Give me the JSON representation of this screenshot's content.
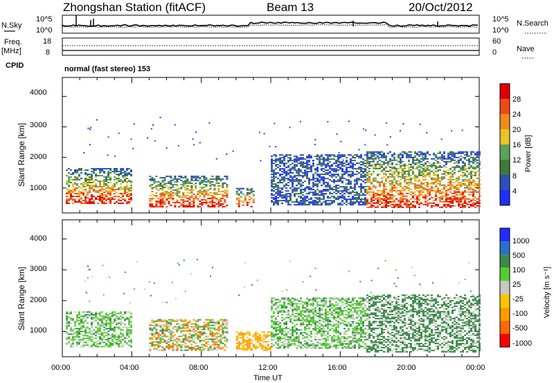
{
  "header": {
    "station": "Zhongshan Station (fitACF)",
    "beam": "Beam 13",
    "date": "20/Oct/2012"
  },
  "strip": {
    "nsky_label": "N.Sky",
    "nsearch_label": "N.Search",
    "freq_label_1": "Freq.",
    "freq_label_2": "[MHz]",
    "nave_label": "Nave",
    "cpid_label": "CPID",
    "cpid_text": "normal (fast stereo) 153",
    "noise_left_ticks": [
      "10^5",
      "10^0"
    ],
    "noise_right_ticks": [
      "10^5",
      "10^0"
    ],
    "freq_left_ticks": [
      "18",
      "8"
    ],
    "nave_right_ticks": [
      "60",
      "0"
    ]
  },
  "colors": {
    "power_scale": [
      "#1f2fff",
      "#2c4fb8",
      "#3e7a3a",
      "#5aa35a",
      "#e8c428",
      "#f08a1a",
      "#ee4a18",
      "#e00000"
    ],
    "velocity_scale": [
      "#ff0000",
      "#ff6a00",
      "#ff9a00",
      "#ffc400",
      "#c8c8c0",
      "#55cc33",
      "#3a8a4a",
      "#2a6fc8",
      "#1f2fff"
    ]
  },
  "chart_data": [
    {
      "type": "heatmap",
      "quantity": "Power",
      "ylabel": "Slant Range [km]",
      "ylim": [
        180,
        4620
      ],
      "yticks": [
        1000,
        2000,
        3000,
        4000
      ],
      "xticks": [
        "00:00",
        "04:00",
        "08:00",
        "12:00",
        "16:00",
        "20:00",
        "00:00"
      ],
      "xlim_hours": [
        0,
        24
      ],
      "colorbar": {
        "label": "Power [dB]",
        "ticks": [
          "4",
          "8",
          "12",
          "16",
          "20",
          "24",
          "28"
        ],
        "range": [
          0,
          32
        ]
      },
      "regions": [
        {
          "t": [
            0.2,
            4.0
          ],
          "r": [
            500,
            1650
          ],
          "level": "mixed"
        },
        {
          "t": [
            5.0,
            9.5
          ],
          "r": [
            400,
            1400
          ],
          "level": "mixed"
        },
        {
          "t": [
            10.0,
            11.0
          ],
          "r": [
            400,
            1000
          ],
          "level": "mixed"
        },
        {
          "t": [
            12.0,
            17.5
          ],
          "r": [
            450,
            2100
          ],
          "level": "weak"
        },
        {
          "t": [
            17.5,
            24.0
          ],
          "r": [
            350,
            2200
          ],
          "level": "mixed"
        }
      ]
    },
    {
      "type": "heatmap",
      "quantity": "Velocity",
      "ylabel": "Slant Range [km]",
      "ylim": [
        180,
        4620
      ],
      "yticks": [
        1000,
        2000,
        3000,
        4000
      ],
      "xticks": [
        "00:00",
        "04:00",
        "08:00",
        "12:00",
        "16:00",
        "20:00",
        "00:00"
      ],
      "xlim_hours": [
        0,
        24
      ],
      "xlabel": "Time UT",
      "colorbar": {
        "label": "Velocity [m s⁻¹]",
        "ticks": [
          "1000",
          "500",
          "100",
          "25",
          "-25",
          "-100",
          "-500",
          "-1000"
        ]
      },
      "regions": [
        {
          "t": [
            0.2,
            4.0
          ],
          "r": [
            500,
            1650
          ],
          "level": "green"
        },
        {
          "t": [
            5.0,
            9.5
          ],
          "r": [
            400,
            1400
          ],
          "level": "mixed"
        },
        {
          "t": [
            10.0,
            12.0
          ],
          "r": [
            400,
            1000
          ],
          "level": "orange"
        },
        {
          "t": [
            12.0,
            17.5
          ],
          "r": [
            450,
            2100
          ],
          "level": "green"
        },
        {
          "t": [
            17.5,
            24.0
          ],
          "r": [
            350,
            2200
          ],
          "level": "darkgreen"
        }
      ]
    }
  ]
}
